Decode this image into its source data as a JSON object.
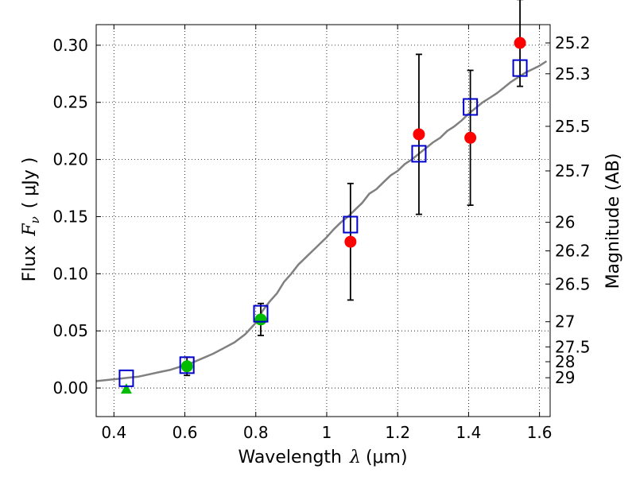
{
  "chart_data": {
    "type": "scatter",
    "xlabel_text": "Wavelength",
    "xlabel_symbol": "λ",
    "xlabel_unit": "(μm)",
    "ylabel_text": "Flux",
    "ylabel_symbol": "F",
    "ylabel_subscript": "ν",
    "ylabel_unit": "( μJy )",
    "y2label": "Magnitude (AB)",
    "xlim": [
      0.35,
      1.63
    ],
    "ylim": [
      -0.025,
      0.318
    ],
    "grid": true,
    "xticks": [
      {
        "value": 0.4,
        "label": "0.4"
      },
      {
        "value": 0.6,
        "label": "0.6"
      },
      {
        "value": 0.8,
        "label": "0.8"
      },
      {
        "value": 1.0,
        "label": "1"
      },
      {
        "value": 1.2,
        "label": "1.2"
      },
      {
        "value": 1.4,
        "label": "1.4"
      },
      {
        "value": 1.6,
        "label": "1.6"
      }
    ],
    "yticks": [
      {
        "value": 0.0,
        "label": "0.00"
      },
      {
        "value": 0.05,
        "label": "0.05"
      },
      {
        "value": 0.1,
        "label": "0.10"
      },
      {
        "value": 0.15,
        "label": "0.15"
      },
      {
        "value": 0.2,
        "label": "0.20"
      },
      {
        "value": 0.25,
        "label": "0.25"
      },
      {
        "value": 0.3,
        "label": "0.30"
      }
    ],
    "magnitude_ticks": [
      {
        "flux": 0.302,
        "label": "25.2"
      },
      {
        "flux": 0.275,
        "label": "25.3"
      },
      {
        "flux": 0.229,
        "label": "25.5"
      },
      {
        "flux": 0.19,
        "label": "25.7"
      },
      {
        "flux": 0.145,
        "label": "26"
      },
      {
        "flux": 0.12,
        "label": "26.2"
      },
      {
        "flux": 0.091,
        "label": "26.5"
      },
      {
        "flux": 0.058,
        "label": "27"
      },
      {
        "flux": 0.036,
        "label": "27.5"
      },
      {
        "flux": 0.023,
        "label": "28"
      },
      {
        "flux": 0.009,
        "label": "29"
      }
    ],
    "series": [
      {
        "kind": "model_spectrum",
        "color": "#808080",
        "x": [
          0.35,
          0.38,
          0.41,
          0.44,
          0.47,
          0.5,
          0.53,
          0.56,
          0.59,
          0.62,
          0.65,
          0.68,
          0.71,
          0.74,
          0.77,
          0.8,
          0.82,
          0.84,
          0.86,
          0.88,
          0.9,
          0.92,
          0.94,
          0.96,
          0.98,
          1.0,
          1.02,
          1.04,
          1.06,
          1.08,
          1.1,
          1.12,
          1.14,
          1.16,
          1.18,
          1.2,
          1.22,
          1.24,
          1.26,
          1.28,
          1.3,
          1.32,
          1.34,
          1.36,
          1.38,
          1.4,
          1.42,
          1.44,
          1.46,
          1.48,
          1.5,
          1.52,
          1.54,
          1.56,
          1.58,
          1.6,
          1.62
        ],
        "y": [
          0.006,
          0.007,
          0.008,
          0.009,
          0.01,
          0.012,
          0.014,
          0.016,
          0.019,
          0.022,
          0.026,
          0.03,
          0.035,
          0.04,
          0.047,
          0.057,
          0.068,
          0.076,
          0.083,
          0.093,
          0.1,
          0.108,
          0.114,
          0.12,
          0.126,
          0.132,
          0.139,
          0.145,
          0.15,
          0.156,
          0.162,
          0.17,
          0.174,
          0.18,
          0.186,
          0.19,
          0.196,
          0.2,
          0.205,
          0.21,
          0.215,
          0.219,
          0.225,
          0.229,
          0.234,
          0.24,
          0.245,
          0.25,
          0.254,
          0.258,
          0.263,
          0.268,
          0.272,
          0.276,
          0.279,
          0.282,
          0.286
        ]
      },
      {
        "kind": "observed_red",
        "color": "#ff0000",
        "points": [
          {
            "x": 1.067,
            "y": 0.128,
            "err": 0.051
          },
          {
            "x": 1.26,
            "y": 0.222,
            "err": 0.07
          },
          {
            "x": 1.405,
            "y": 0.219,
            "err": 0.059
          },
          {
            "x": 1.545,
            "y": 0.302,
            "err": 0.038
          }
        ]
      },
      {
        "kind": "observed_green",
        "color": "#00bb00",
        "points": [
          {
            "x": 0.606,
            "y": 0.019,
            "err": 0.008
          },
          {
            "x": 0.814,
            "y": 0.06,
            "err": 0.014
          }
        ]
      },
      {
        "kind": "upper_limit",
        "color": "#00bb00",
        "points": [
          {
            "x": 0.435,
            "y": 0.0
          }
        ]
      },
      {
        "kind": "model_photometry",
        "color": "#0000cc",
        "points": [
          {
            "x": 0.435,
            "y": 0.0085
          },
          {
            "x": 0.606,
            "y": 0.02
          },
          {
            "x": 0.814,
            "y": 0.065
          },
          {
            "x": 1.067,
            "y": 0.143
          },
          {
            "x": 1.26,
            "y": 0.205
          },
          {
            "x": 1.405,
            "y": 0.246
          },
          {
            "x": 1.545,
            "y": 0.28
          }
        ]
      }
    ]
  }
}
